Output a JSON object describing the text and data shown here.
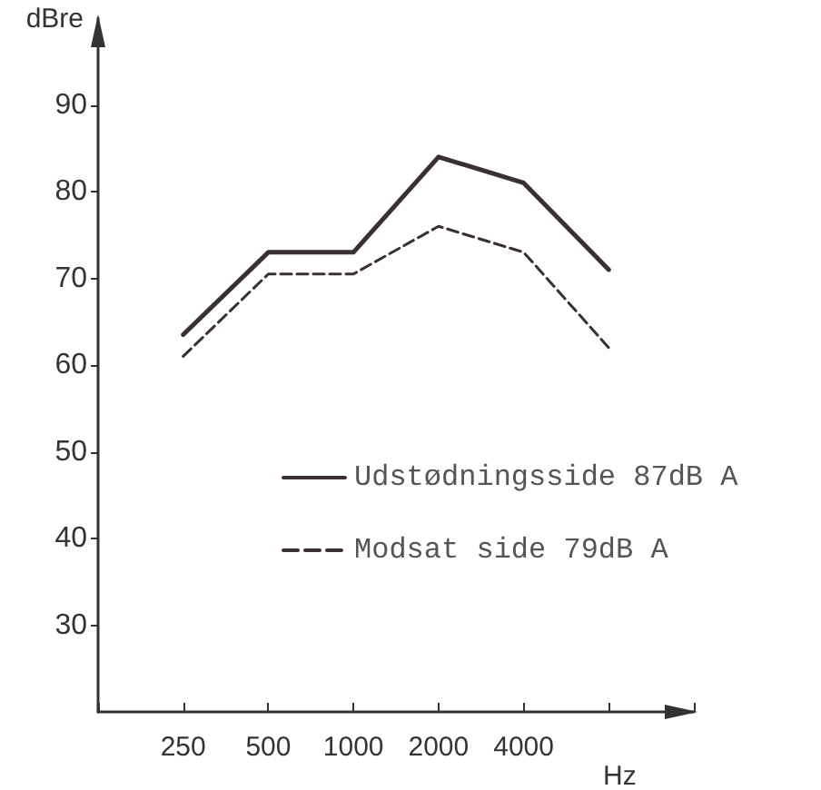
{
  "chart_data": {
    "type": "line",
    "ylabel": "dBre",
    "xlabel": "Hz",
    "categories": [
      "250",
      "500",
      "1000",
      "2000",
      "4000",
      null
    ],
    "series": [
      {
        "name": "Udstødningsside 87dB A",
        "color": "#3a3030",
        "line_style": "solid",
        "values": [
          63.5,
          73,
          73,
          84,
          81,
          71
        ]
      },
      {
        "name": "Modsat side 79dB A",
        "color": "#3a3030",
        "line_style": "dashed",
        "values": [
          61,
          70.5,
          70.5,
          76,
          73,
          62
        ]
      }
    ],
    "ylim": [
      20,
      100
    ],
    "yticks": [
      30,
      40,
      50,
      60,
      70,
      80,
      90
    ],
    "grid": false,
    "legend": "right",
    "marker": "none"
  }
}
